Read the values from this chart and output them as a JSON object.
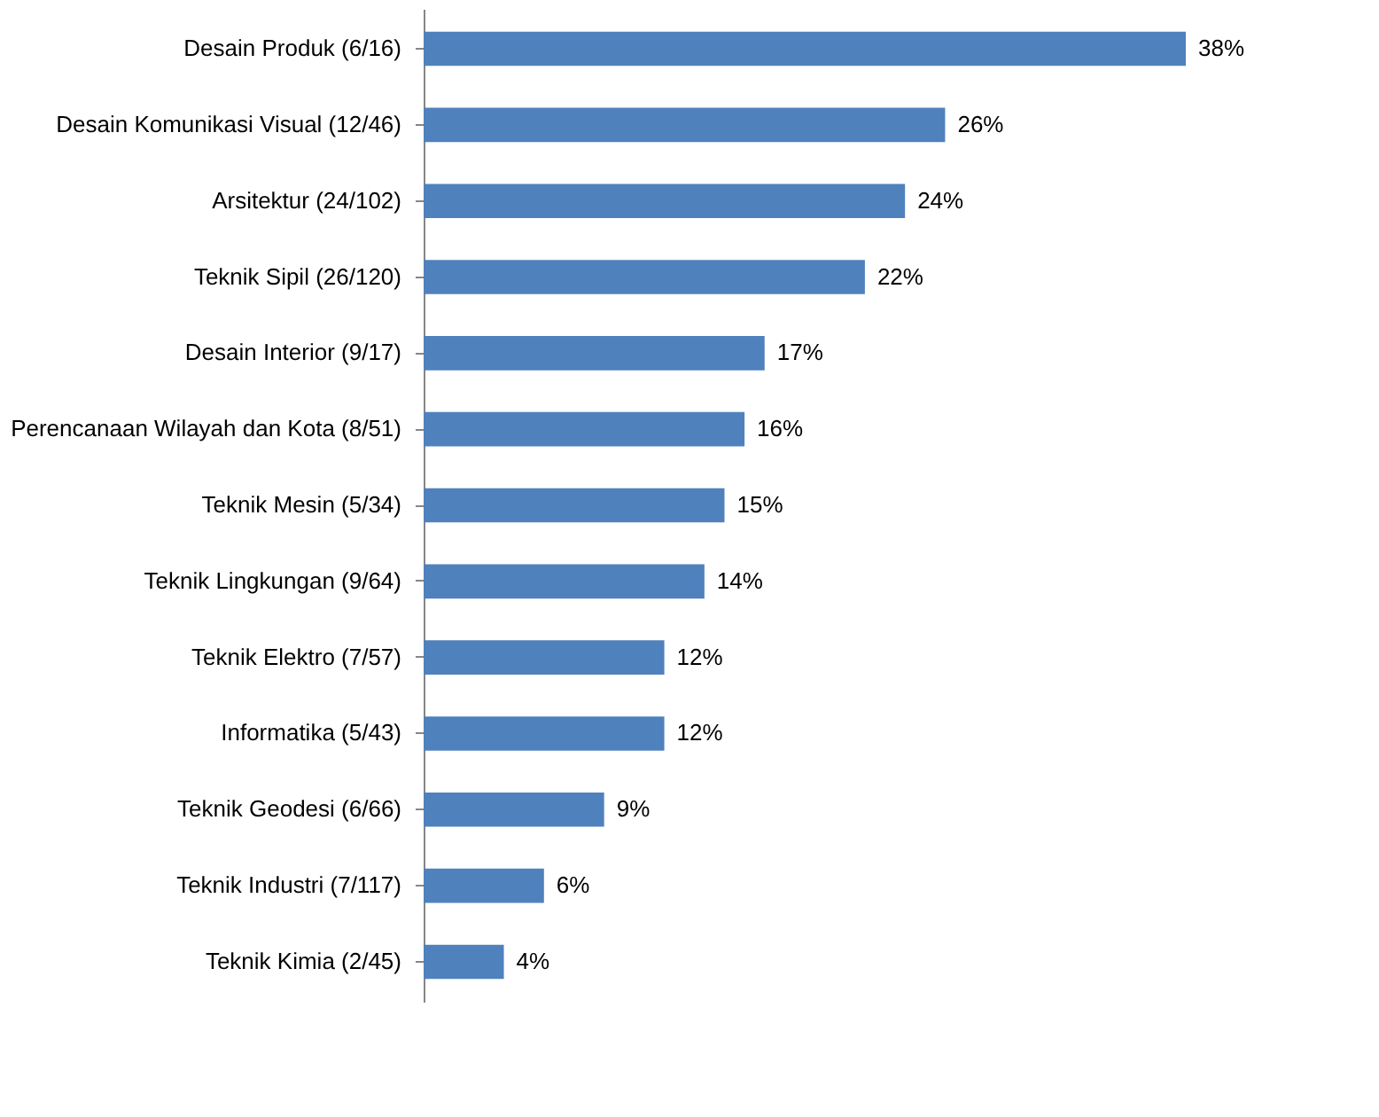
{
  "chart_data": {
    "type": "bar",
    "orientation": "horizontal",
    "categories": [
      "Desain Produk (6/16)",
      "Desain Komunikasi Visual (12/46)",
      "Arsitektur (24/102)",
      "Teknik Sipil (26/120)",
      "Desain Interior (9/17)",
      "Perencanaan Wilayah dan Kota (8/51)",
      "Teknik Mesin (5/34)",
      "Teknik Lingkungan (9/64)",
      "Teknik Elektro (7/57)",
      "Informatika (5/43)",
      "Teknik Geodesi (6/66)",
      "Teknik Industri (7/117)",
      "Teknik Kimia (2/45)"
    ],
    "values": [
      38,
      26,
      24,
      22,
      17,
      16,
      15,
      14,
      12,
      12,
      9,
      6,
      4
    ],
    "value_labels": [
      "38%",
      "26%",
      "24%",
      "22%",
      "17%",
      "16%",
      "15%",
      "14%",
      "12%",
      "12%",
      "9%",
      "6%",
      "4%"
    ],
    "color": "#4f81bd",
    "grid": false
  }
}
